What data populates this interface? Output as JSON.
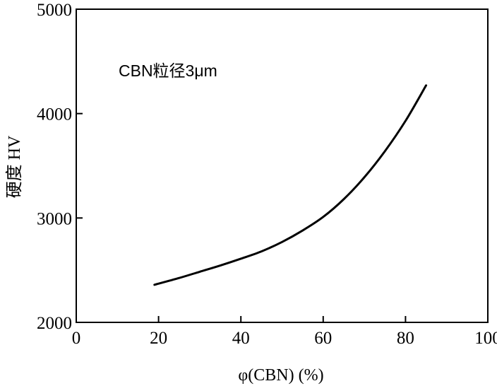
{
  "chart_data": {
    "type": "line",
    "title": "",
    "xlabel": "φ(CBN) (%)",
    "ylabel": "硬度 HV",
    "xlim": [
      0,
      100
    ],
    "ylim": [
      2000,
      5000
    ],
    "xticks": [
      0,
      20,
      40,
      60,
      80,
      100
    ],
    "yticks": [
      2000,
      3000,
      4000,
      5000
    ],
    "grid": false,
    "annotation": "CBN粒径3μm",
    "colors": {
      "line": "#000000",
      "axes": "#000000",
      "background": "#ffffff"
    },
    "series": [
      {
        "x": [
          19,
          25,
          30,
          35,
          40,
          45,
          50,
          55,
          60,
          65,
          70,
          75,
          80,
          85
        ],
        "y": [
          2360,
          2425,
          2485,
          2545,
          2610,
          2680,
          2770,
          2880,
          3010,
          3180,
          3390,
          3640,
          3930,
          4270
        ]
      }
    ]
  }
}
